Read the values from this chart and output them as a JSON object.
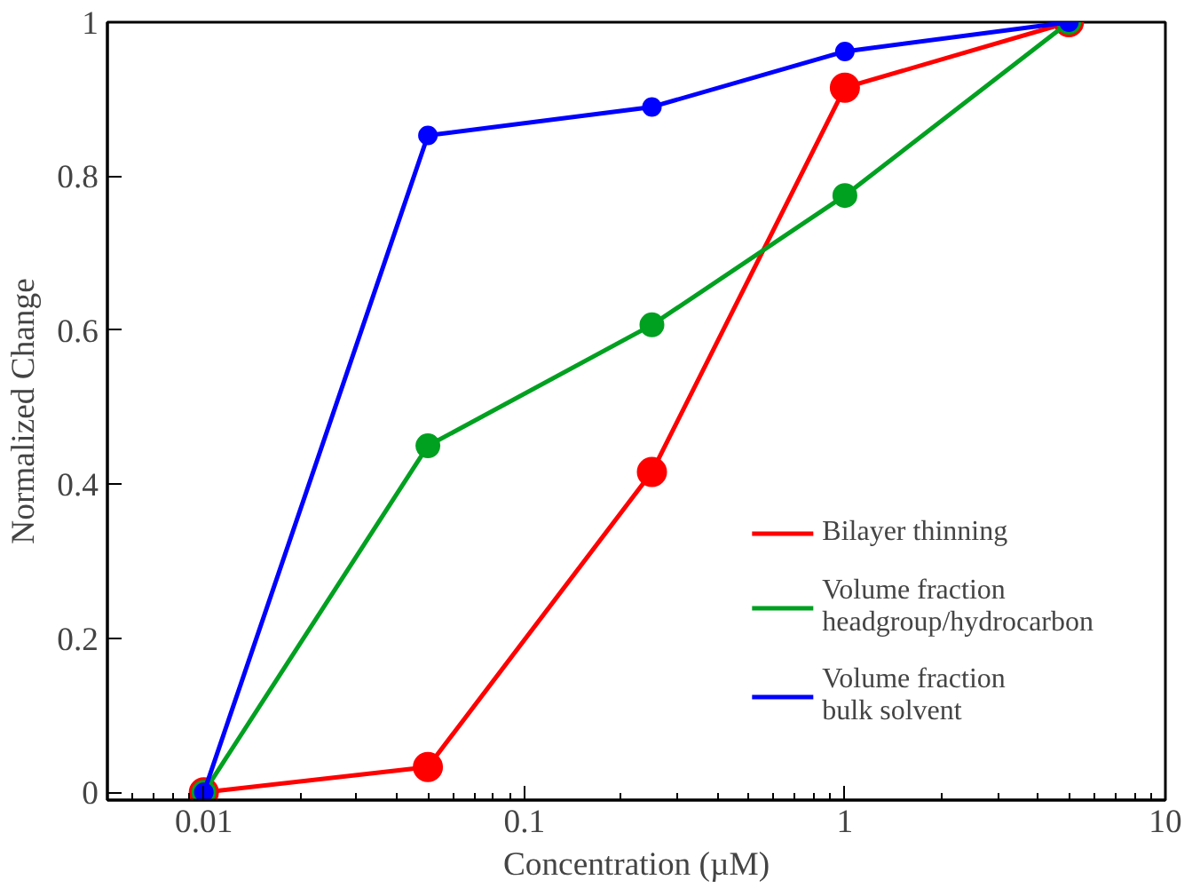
{
  "chart_data": {
    "type": "line",
    "xlabel": "Concentration (µM)",
    "ylabel": "Normalized Change",
    "x": [
      0.01,
      0.05,
      0.25,
      1,
      5
    ],
    "series": [
      {
        "name": "Bilayer thinning",
        "color": "#ff0000",
        "values": [
          0,
          0.033,
          0.416,
          0.915,
          1
        ]
      },
      {
        "name": "Volume fraction\nheadgroup/hydrocarbon",
        "color": "#00a020",
        "values": [
          0,
          0.45,
          0.607,
          0.775,
          1
        ]
      },
      {
        "name": "Volume fraction\nbulk solvent",
        "color": "#0000ff",
        "values": [
          0,
          0.853,
          0.89,
          0.962,
          1
        ]
      }
    ],
    "log": "x",
    "xlim": [
      0.005,
      10
    ],
    "ylim": [
      -0.01,
      1.0
    ],
    "xticks": [
      0.01,
      0.1,
      1,
      10
    ],
    "yticks": [
      0,
      0.2,
      0.4,
      0.6,
      0.8,
      1
    ],
    "grid": false,
    "legend": "bottom right",
    "marker": "circle",
    "line_style": "solid"
  }
}
